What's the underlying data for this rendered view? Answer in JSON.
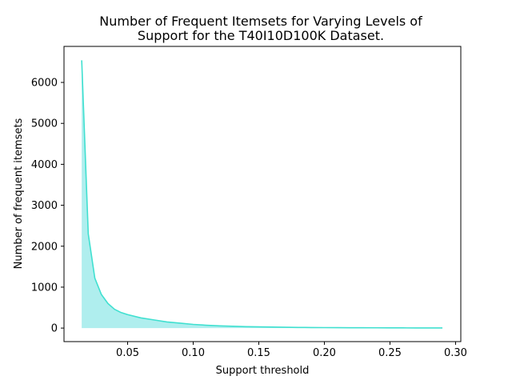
{
  "chart_data": {
    "type": "area",
    "title_lines": [
      "Number of Frequent Itemsets for Varying Levels of",
      "Support for the T40I10D100K Dataset."
    ],
    "xlabel": "Support threshold",
    "ylabel": "Number of frequent itemsets",
    "xlim": [
      0.0015,
      0.304
    ],
    "ylim": [
      -330,
      6880
    ],
    "x_ticks": [
      0.05,
      0.1,
      0.15,
      0.2,
      0.25,
      0.3
    ],
    "x_tick_labels": [
      "0.05",
      "0.10",
      "0.15",
      "0.20",
      "0.25",
      "0.30"
    ],
    "y_ticks": [
      0,
      1000,
      2000,
      3000,
      4000,
      5000,
      6000
    ],
    "y_tick_labels": [
      "0",
      "1000",
      "2000",
      "3000",
      "4000",
      "5000",
      "6000"
    ],
    "grid": false,
    "legend": "none",
    "line_color": "#40e0d0",
    "fill_color": "#afeeee",
    "series": [
      {
        "x": [
          0.015,
          0.02,
          0.025,
          0.03,
          0.035,
          0.04,
          0.045,
          0.05,
          0.06,
          0.07,
          0.08,
          0.09,
          0.1,
          0.11,
          0.12,
          0.13,
          0.14,
          0.15,
          0.16,
          0.17,
          0.18,
          0.19,
          0.2,
          0.21,
          0.22,
          0.23,
          0.24,
          0.25,
          0.26,
          0.27,
          0.28,
          0.29
        ],
        "values": [
          6540,
          2300,
          1220,
          820,
          600,
          460,
          380,
          330,
          250,
          200,
          150,
          120,
          90,
          70,
          55,
          45,
          35,
          30,
          25,
          20,
          16,
          14,
          12,
          10,
          9,
          8,
          7,
          6,
          5,
          4,
          4,
          3
        ]
      }
    ]
  }
}
